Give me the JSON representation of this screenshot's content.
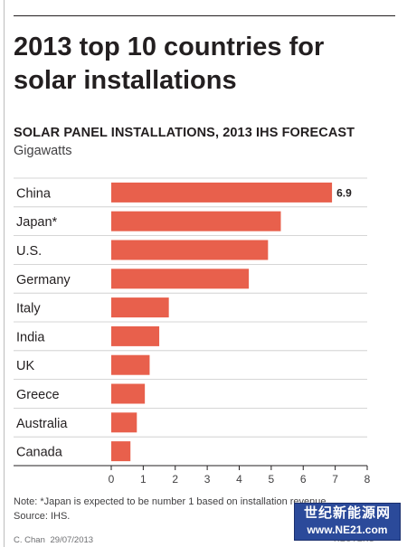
{
  "title": "2013 top 10 countries for solar installations",
  "chart_data": {
    "type": "bar",
    "orientation": "horizontal",
    "title": "SOLAR PANEL INSTALLATIONS, 2013 IHS FORECAST",
    "unit": "Gigawatts",
    "categories": [
      "China",
      "Japan*",
      "U.S.",
      "Germany",
      "Italy",
      "India",
      "UK",
      "Greece",
      "Australia",
      "Canada"
    ],
    "values": [
      6.9,
      5.3,
      4.9,
      4.3,
      1.8,
      1.5,
      1.2,
      1.05,
      0.8,
      0.6
    ],
    "data_labels": [
      "6.9",
      "",
      "",
      "",
      "",
      "",
      "",
      "",
      "",
      ""
    ],
    "xlim": [
      0,
      8
    ],
    "xticks": [
      "0",
      "1",
      "2",
      "3",
      "4",
      "5",
      "6",
      "7",
      "8"
    ],
    "grid": "horizontal row separators",
    "bar_color": "#e8604c"
  },
  "note": "Note: *Japan is expected to be number 1 based on installation revenue",
  "source": "Source: IHS.",
  "credit": {
    "author": "C. Chan",
    "date": "29/07/2013",
    "agency": "REUTERS"
  },
  "watermark": {
    "chinese": "世纪新能源网",
    "url": "www.NE21.com"
  }
}
